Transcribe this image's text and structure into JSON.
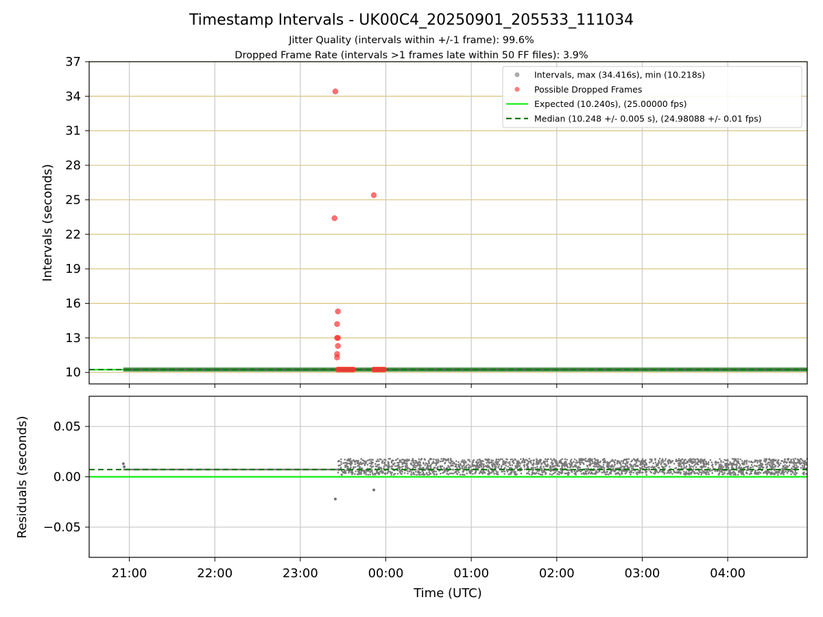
{
  "header": {
    "title": "Timestamp Intervals - UK00C4_20250901_205533_111034",
    "subtitle_1": "Jitter Quality (intervals within +/-1 frame): 99.6%",
    "subtitle_2": "Dropped Frame Rate (intervals >1 frames late within 50 FF files): 3.9%"
  },
  "colors": {
    "intervals": "#808080",
    "dropped": "#ff3333",
    "expected": "#22ee22",
    "median": "#117711",
    "hgrid_top": "#d8c47e",
    "vgrid": "#c8c8c8"
  },
  "chart_data": [
    {
      "type": "scatter",
      "ylabel": "Intervals (seconds)",
      "ylim": [
        9,
        37
      ],
      "yticks": [
        10,
        13,
        16,
        19,
        22,
        25,
        28,
        31,
        34,
        37
      ],
      "ytick_labels": [
        "10",
        "13",
        "16",
        "19",
        "22",
        "25",
        "28",
        "31",
        "34",
        "37"
      ],
      "xlim_hours": [
        -0.47,
        7.93
      ],
      "xticks_hours": [
        0,
        1,
        2,
        3,
        4,
        5,
        6,
        7
      ],
      "xtick_labels": [
        "21:00",
        "22:00",
        "23:00",
        "00:00",
        "01:00",
        "02:00",
        "03:00",
        "04:00"
      ],
      "grid": true,
      "legend_position": "upper right",
      "legend": [
        {
          "label": "Intervals, max (34.416s), min (10.218s)",
          "kind": "dot",
          "color": "#808080"
        },
        {
          "label": "Possible Dropped Frames",
          "kind": "dot",
          "color": "#ff3333"
        },
        {
          "label": "Expected (10.240s), (25.00000 fps)",
          "kind": "line",
          "color": "#22ee22"
        },
        {
          "label": "Median (10.248 +/- 0.005 s), (24.98088 +/- 0.01 fps)",
          "kind": "dash",
          "color": "#117711"
        }
      ],
      "expected": 10.24,
      "median": 10.248,
      "intervals_band": {
        "x_start": -0.07,
        "x_end": 7.93,
        "y": 10.248
      },
      "dropped_points": [
        {
          "x": 2.41,
          "y": 34.416
        },
        {
          "x": 2.86,
          "y": 25.4
        },
        {
          "x": 2.4,
          "y": 23.4
        },
        {
          "x": 2.44,
          "y": 15.3
        },
        {
          "x": 2.43,
          "y": 14.2
        },
        {
          "x": 2.43,
          "y": 13.0
        },
        {
          "x": 2.44,
          "y": 13.0
        },
        {
          "x": 2.44,
          "y": 12.3
        },
        {
          "x": 2.43,
          "y": 11.6
        },
        {
          "x": 2.43,
          "y": 11.3
        }
      ],
      "dropped_clusters": [
        {
          "x_start": 2.43,
          "x_end": 2.63,
          "y": 10.25
        },
        {
          "x_start": 2.85,
          "x_end": 2.99,
          "y": 10.25
        }
      ]
    },
    {
      "type": "scatter",
      "ylabel": "Residuals (seconds)",
      "xlabel": "Time (UTC)",
      "ylim": [
        -0.08,
        0.08
      ],
      "yticks": [
        0.05,
        0.0,
        -0.05
      ],
      "ytick_labels": [
        "0.05",
        "0.00",
        "−0.05"
      ],
      "xlim_hours": [
        -0.47,
        7.93
      ],
      "xticks_hours": [
        0,
        1,
        2,
        3,
        4,
        5,
        6,
        7
      ],
      "xtick_labels": [
        "21:00",
        "22:00",
        "23:00",
        "00:00",
        "01:00",
        "02:00",
        "03:00",
        "04:00"
      ],
      "grid": true,
      "expected": 0.0,
      "median": 0.0072,
      "early_segment": {
        "x_start": -0.07,
        "x_end": 2.44,
        "y": 0.0072
      },
      "late_segment": {
        "x_start": 2.44,
        "x_end": 7.93,
        "y_min": 0.002,
        "y_max": 0.018
      },
      "outliers": [
        {
          "x": 2.41,
          "y": -0.022
        },
        {
          "x": 2.86,
          "y": -0.013
        },
        {
          "x": -0.07,
          "y": 0.013
        },
        {
          "x": -0.06,
          "y": 0.01
        }
      ]
    }
  ]
}
